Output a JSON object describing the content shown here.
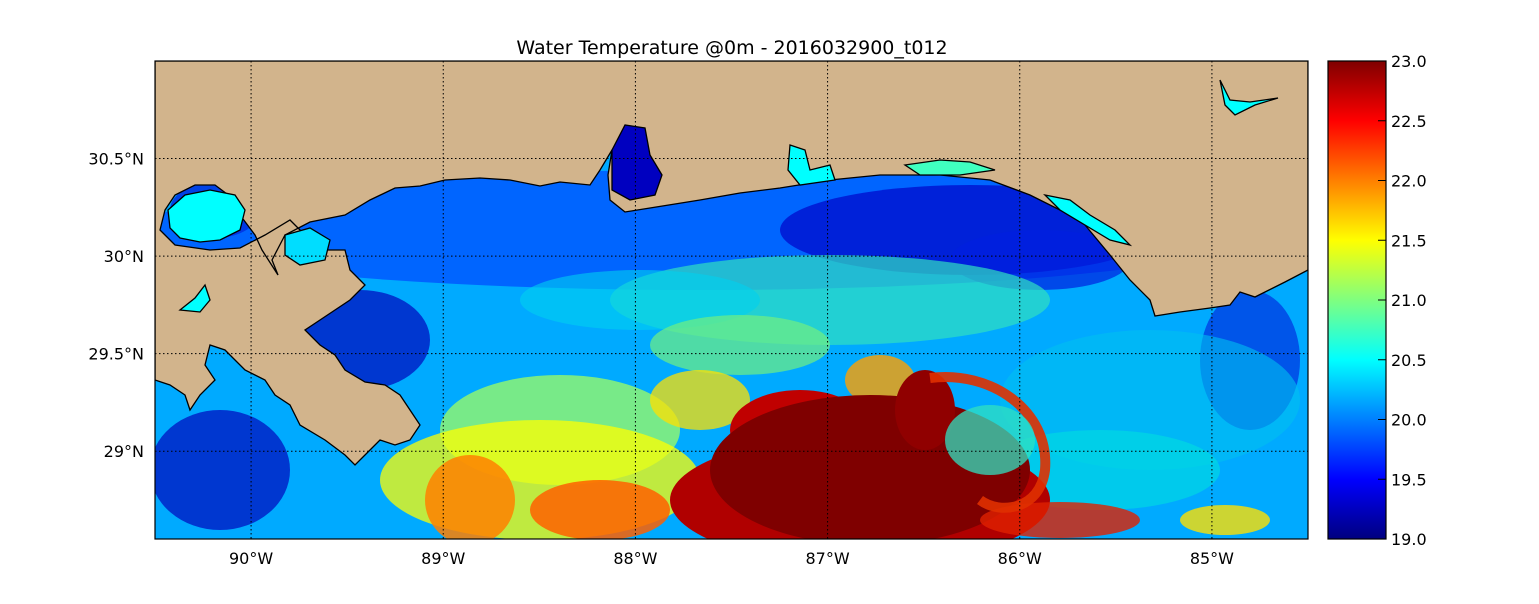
{
  "title": "Water Temperature @0m - 2016032900_t012",
  "map": {
    "lon_range": [
      -90.5,
      -84.5
    ],
    "lat_range": [
      28.55,
      31.0
    ],
    "grid_lines": "dotted",
    "land_color": "#D2B48C",
    "colormap": "jet",
    "lon_ticks": [
      {
        "value": -90,
        "label": "90°W"
      },
      {
        "value": -89,
        "label": "89°W"
      },
      {
        "value": -88,
        "label": "88°W"
      },
      {
        "value": -87,
        "label": "87°W"
      },
      {
        "value": -86,
        "label": "86°W"
      },
      {
        "value": -85,
        "label": "85°W"
      }
    ],
    "lat_ticks": [
      {
        "value": 30.5,
        "label": "30.5°N"
      },
      {
        "value": 30.0,
        "label": "30°N"
      },
      {
        "value": 29.5,
        "label": "29.5°N"
      },
      {
        "value": 29.0,
        "label": "29°N"
      }
    ]
  },
  "colorbar": {
    "min": 19.0,
    "max": 23.0,
    "ticks": [
      "19.0",
      "19.5",
      "20.0",
      "20.5",
      "21.0",
      "21.5",
      "22.0",
      "22.5",
      "23.0"
    ]
  }
}
